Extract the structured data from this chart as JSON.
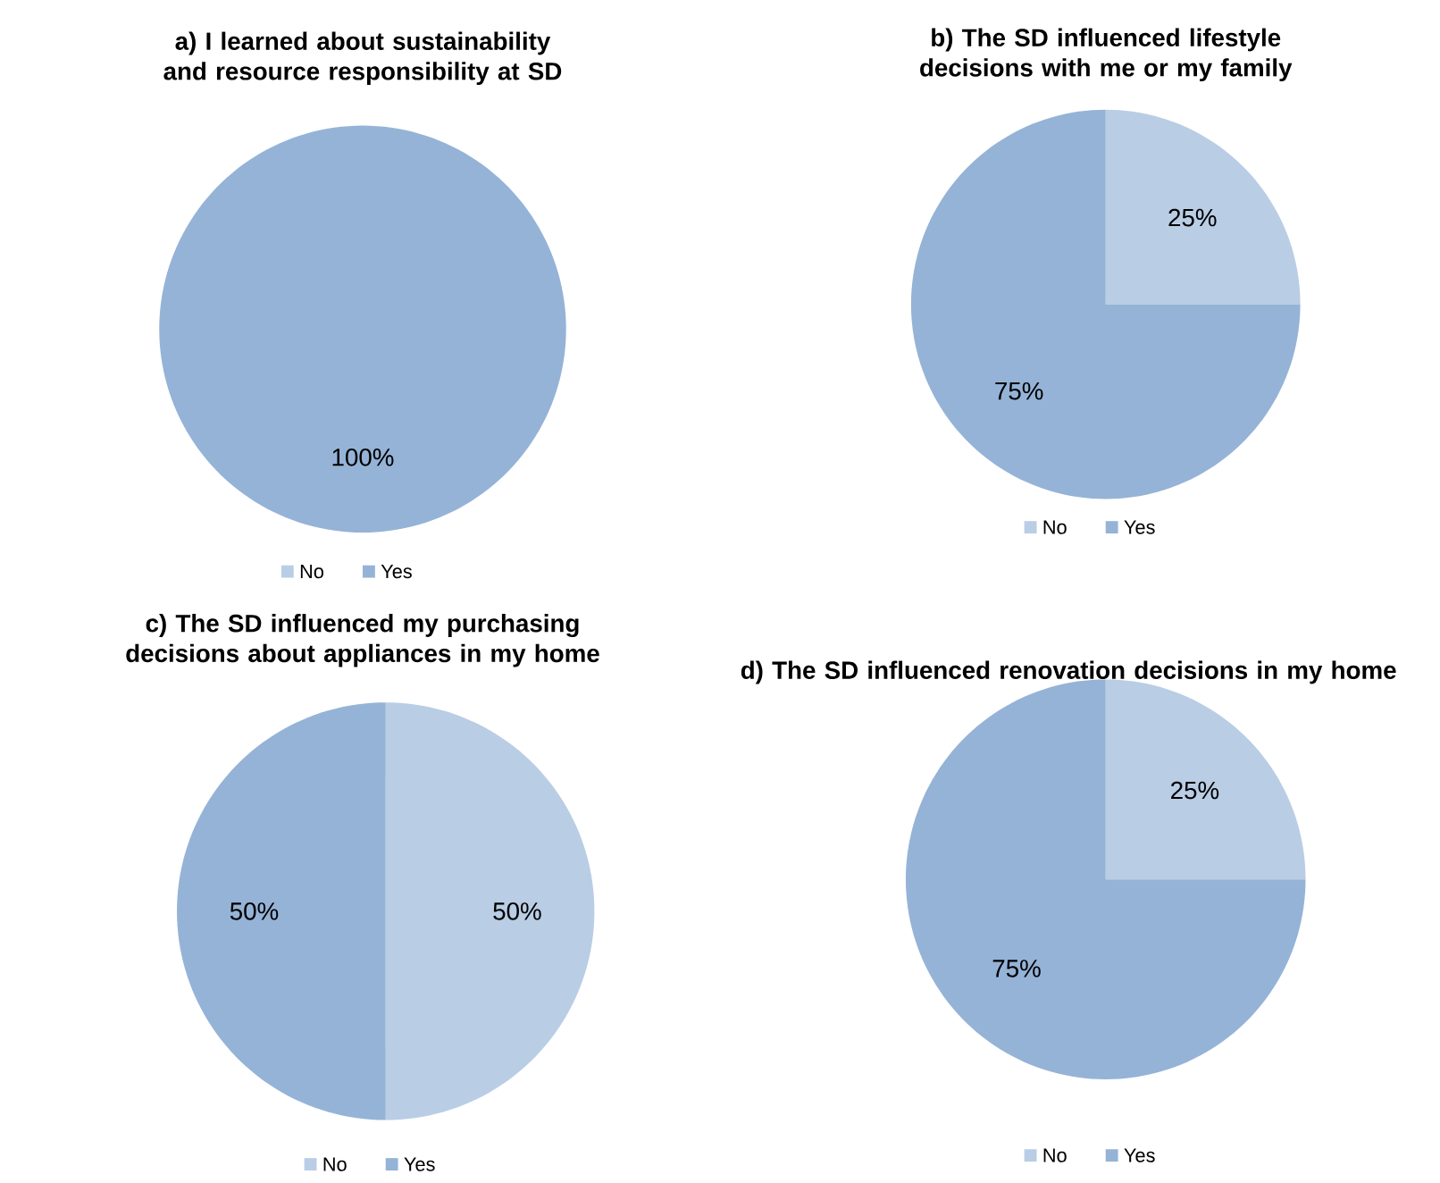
{
  "chart_data": [
    {
      "type": "pie",
      "title": "a) I learned about sustainability and resource responsibility at SD",
      "categories": [
        "No",
        "Yes"
      ],
      "values": [
        0,
        100
      ],
      "colors": [
        "#b9cde5",
        "#95b3d7"
      ],
      "value_labels": [
        null,
        "100%"
      ],
      "legend": "bottom"
    },
    {
      "type": "pie",
      "title": "b) The SD influenced lifestyle decisions with me or my family",
      "categories": [
        "No",
        "Yes"
      ],
      "values": [
        25,
        75
      ],
      "colors": [
        "#b9cde5",
        "#95b3d7"
      ],
      "value_labels": [
        "25%",
        "75%"
      ],
      "legend": "bottom"
    },
    {
      "type": "pie",
      "title": "c) The SD influenced my purchasing decisions about appliances in my home",
      "categories": [
        "No",
        "Yes"
      ],
      "values": [
        50,
        50
      ],
      "colors": [
        "#b9cde5",
        "#95b3d7"
      ],
      "value_labels": [
        "50%",
        "50%"
      ],
      "legend": "bottom"
    },
    {
      "type": "pie",
      "title": "d) The SD influenced renovation decisions in my home",
      "categories": [
        "No",
        "Yes"
      ],
      "values": [
        25,
        75
      ],
      "colors": [
        "#b9cde5",
        "#95b3d7"
      ],
      "value_labels": [
        "25%",
        "75%"
      ],
      "legend": "bottom"
    }
  ]
}
